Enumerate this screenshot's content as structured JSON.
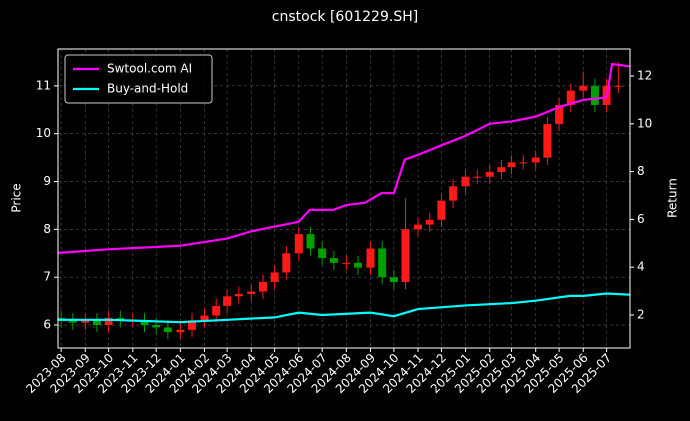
{
  "chart_data": {
    "type": "candlestick",
    "title": "cnstock [601229.SH]",
    "ylabel": "Price",
    "y2label": "Return",
    "xlim": [
      "2023-07-28",
      "2025-07-31"
    ],
    "xticks": [
      "2023-08",
      "2023-09",
      "2023-10",
      "2023-11",
      "2023-12",
      "2024-01",
      "2024-02",
      "2024-03",
      "2024-04",
      "2024-05",
      "2024-06",
      "2024-07",
      "2024-08",
      "2024-09",
      "2024-10",
      "2024-11",
      "2024-12",
      "2025-01",
      "2025-02",
      "2025-03",
      "2025-04",
      "2025-05",
      "2025-06",
      "2025-07"
    ],
    "ylim": [
      5.52,
      11.77
    ],
    "yticks": [
      6,
      7,
      8,
      9,
      10,
      11
    ],
    "y2lim": [
      0.62,
      13.13
    ],
    "y2ticks": [
      2,
      4,
      6,
      8,
      10,
      12
    ],
    "grid": true,
    "legend": "upper left",
    "up_color": "#ff1a1a",
    "down_color": "#00a000",
    "candles": {
      "x": [
        "2023-08-01",
        "2023-08-16",
        "2023-09-01",
        "2023-09-16",
        "2023-10-01",
        "2023-10-16",
        "2023-11-01",
        "2023-11-16",
        "2023-12-01",
        "2023-12-16",
        "2024-01-01",
        "2024-01-16",
        "2024-02-01",
        "2024-02-16",
        "2024-03-01",
        "2024-03-16",
        "2024-04-01",
        "2024-04-16",
        "2024-05-01",
        "2024-05-16",
        "2024-06-01",
        "2024-06-16",
        "2024-07-01",
        "2024-07-16",
        "2024-08-01",
        "2024-08-16",
        "2024-09-01",
        "2024-09-16",
        "2024-10-01",
        "2024-10-16",
        "2024-11-01",
        "2024-11-16",
        "2024-12-01",
        "2024-12-16",
        "2025-01-01",
        "2025-01-16",
        "2025-02-01",
        "2025-02-16",
        "2025-03-01",
        "2025-03-16",
        "2025-04-01",
        "2025-04-16",
        "2025-05-01",
        "2025-05-16",
        "2025-06-01",
        "2025-06-16",
        "2025-07-01",
        "2025-07-16"
      ],
      "open": [
        6.15,
        6.1,
        6.05,
        6.1,
        6.0,
        6.15,
        6.1,
        6.1,
        6.0,
        5.95,
        5.85,
        5.9,
        6.1,
        6.2,
        6.4,
        6.6,
        6.65,
        6.7,
        6.9,
        7.1,
        7.5,
        7.9,
        7.6,
        7.4,
        7.3,
        7.3,
        7.2,
        7.6,
        7.0,
        6.9,
        8.0,
        8.1,
        8.2,
        8.6,
        8.9,
        9.1,
        9.1,
        9.2,
        9.3,
        9.4,
        9.4,
        9.5,
        10.2,
        10.6,
        10.9,
        11.0,
        10.6,
        11.0
      ],
      "high": [
        6.3,
        6.25,
        6.25,
        6.25,
        6.3,
        6.3,
        6.25,
        6.25,
        6.15,
        6.1,
        6.05,
        6.25,
        6.35,
        6.55,
        6.75,
        6.8,
        6.85,
        7.05,
        7.25,
        7.65,
        8.05,
        8.05,
        7.75,
        7.55,
        7.45,
        7.45,
        7.75,
        7.75,
        7.15,
        8.65,
        8.25,
        8.35,
        8.75,
        9.05,
        9.25,
        9.25,
        9.35,
        9.45,
        9.55,
        9.55,
        9.65,
        10.35,
        10.75,
        11.05,
        11.3,
        11.15,
        11.15,
        11.5
      ],
      "low": [
        5.95,
        5.9,
        5.9,
        5.85,
        5.85,
        5.95,
        5.95,
        5.85,
        5.8,
        5.7,
        5.7,
        5.75,
        5.95,
        6.05,
        6.25,
        6.45,
        6.5,
        6.55,
        6.75,
        6.95,
        7.35,
        7.45,
        7.25,
        7.15,
        7.15,
        7.05,
        7.05,
        6.85,
        6.75,
        6.75,
        7.85,
        7.95,
        8.05,
        8.45,
        8.75,
        8.95,
        8.95,
        9.05,
        9.15,
        9.25,
        9.25,
        9.35,
        10.05,
        10.45,
        10.75,
        10.45,
        10.45,
        10.85
      ],
      "close": [
        6.1,
        6.05,
        6.1,
        6.0,
        6.15,
        6.1,
        6.1,
        6.0,
        5.95,
        5.85,
        5.9,
        6.1,
        6.2,
        6.4,
        6.6,
        6.65,
        6.7,
        6.9,
        7.1,
        7.5,
        7.9,
        7.6,
        7.4,
        7.3,
        7.3,
        7.2,
        7.6,
        7.0,
        6.9,
        8.0,
        8.1,
        8.2,
        8.6,
        8.9,
        9.1,
        9.1,
        9.2,
        9.3,
        9.4,
        9.4,
        9.5,
        10.2,
        10.6,
        10.9,
        11.0,
        10.6,
        11.0,
        11.0
      ]
    },
    "series": [
      {
        "name": "Swtool.com AI",
        "color": "#ff00ff",
        "axis": "y2",
        "x": [
          "2023-07-28",
          "2023-10-01",
          "2023-11-01",
          "2024-01-01",
          "2024-03-01",
          "2024-04-01",
          "2024-05-01",
          "2024-06-01",
          "2024-06-15",
          "2024-07-15",
          "2024-08-01",
          "2024-08-25",
          "2024-09-15",
          "2024-10-01",
          "2024-10-15",
          "2024-11-01",
          "2024-12-01",
          "2025-01-01",
          "2025-02-01",
          "2025-03-01",
          "2025-04-01",
          "2025-05-01",
          "2025-06-01",
          "2025-07-01",
          "2025-07-08",
          "2025-07-31"
        ],
        "values": [
          4.6,
          4.75,
          4.8,
          4.9,
          5.2,
          5.5,
          5.7,
          5.9,
          6.4,
          6.4,
          6.6,
          6.7,
          7.1,
          7.1,
          8.5,
          8.7,
          9.1,
          9.5,
          10.0,
          10.1,
          10.3,
          10.7,
          11.0,
          11.1,
          12.5,
          12.4
        ]
      },
      {
        "name": "Buy-and-Hold",
        "color": "#00ffff",
        "axis": "y2",
        "x": [
          "2023-07-28",
          "2023-10-01",
          "2024-01-01",
          "2024-03-01",
          "2024-05-01",
          "2024-06-01",
          "2024-07-01",
          "2024-09-01",
          "2024-10-01",
          "2024-11-01",
          "2025-01-01",
          "2025-03-01",
          "2025-04-01",
          "2025-05-15",
          "2025-06-01",
          "2025-07-01",
          "2025-07-31"
        ],
        "values": [
          1.8,
          1.8,
          1.7,
          1.8,
          1.9,
          2.1,
          2.0,
          2.1,
          1.95,
          2.25,
          2.4,
          2.5,
          2.6,
          2.8,
          2.8,
          2.9,
          2.85
        ]
      }
    ]
  }
}
